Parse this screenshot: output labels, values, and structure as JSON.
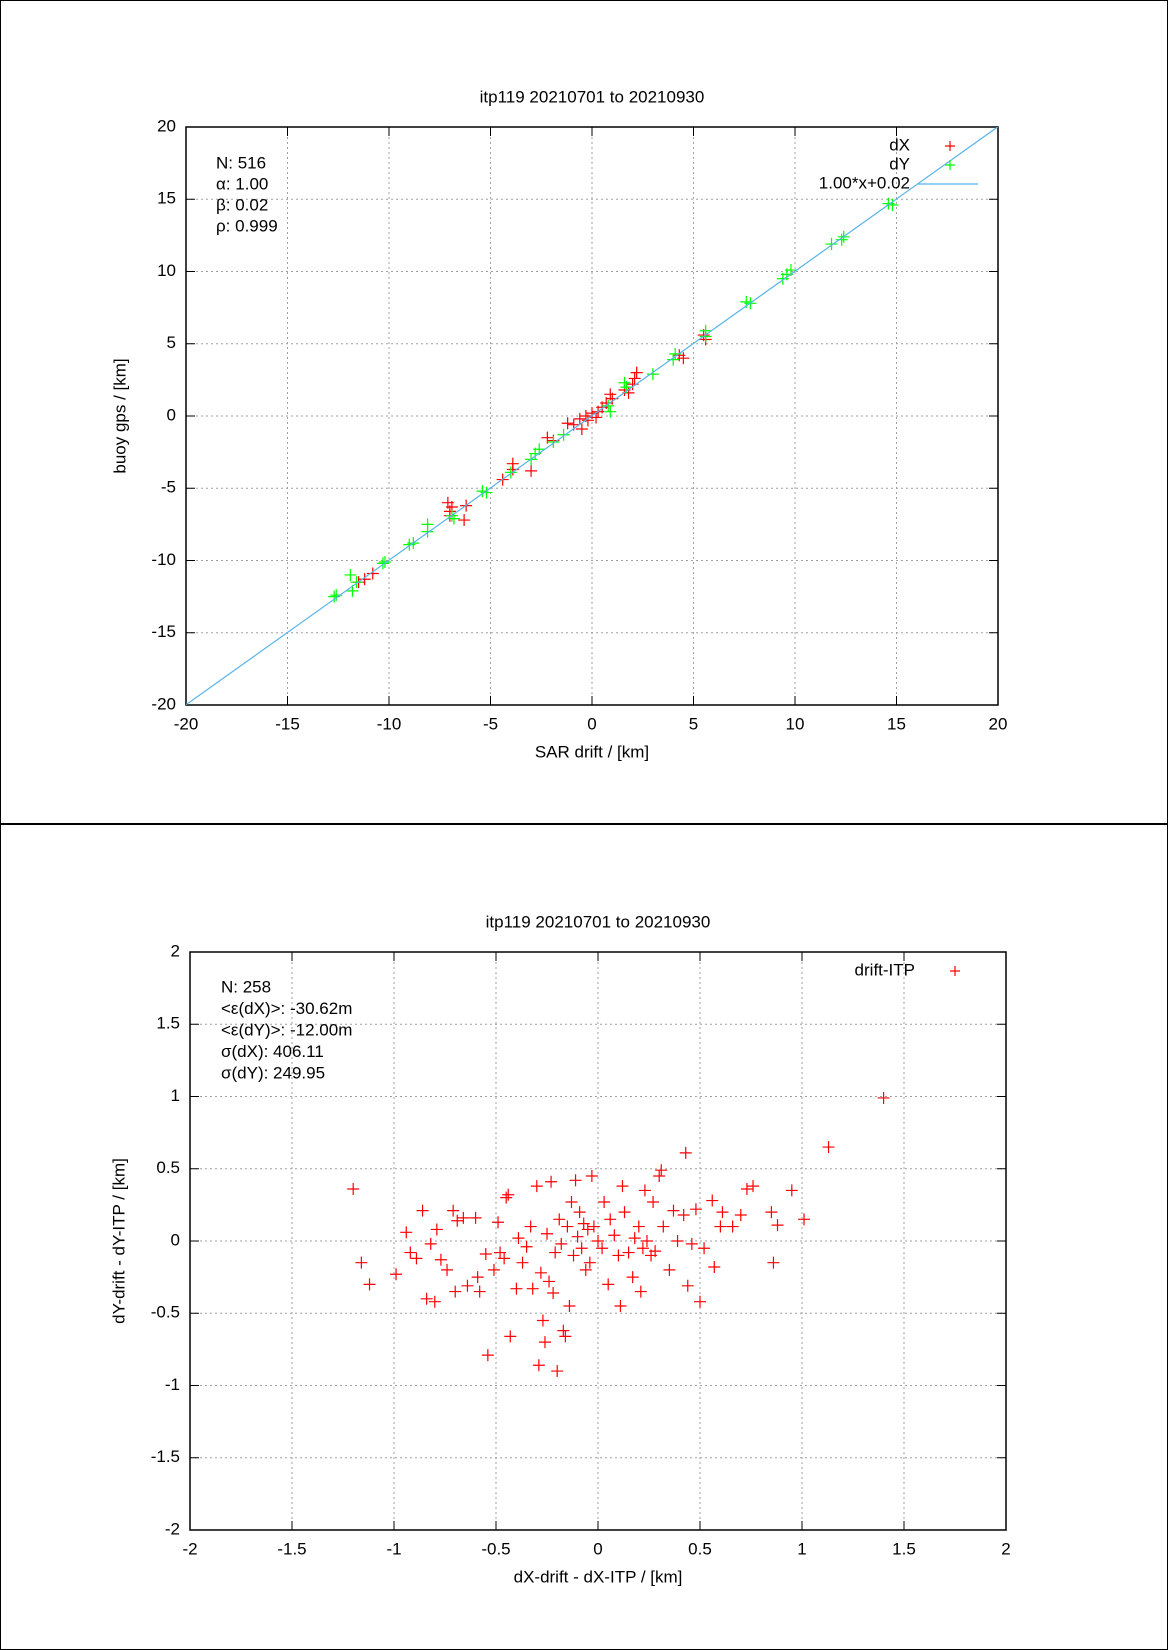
{
  "chart_data": [
    {
      "type": "scatter",
      "title": "itp119 20210701 to 20210930",
      "xlabel": "SAR drift / [km]",
      "ylabel": "buoy gps / [km]",
      "xlim": [
        -20,
        20
      ],
      "ylim": [
        -20,
        20
      ],
      "xticks": [
        -20,
        -15,
        -10,
        -5,
        0,
        5,
        10,
        15,
        20
      ],
      "yticks": [
        -20,
        -15,
        -10,
        -5,
        0,
        5,
        10,
        15,
        20
      ],
      "grid": true,
      "legend": "top-right",
      "annotations": [
        "N: 516",
        "α: 1.00",
        "β: 0.02",
        "ρ: 0.999"
      ],
      "series": [
        {
          "name": "dX",
          "color": "#ff0000",
          "style": "points",
          "x": [
            -11.5,
            -11.2,
            -10.8,
            -6.9,
            -7.0,
            -6.2,
            -6.3,
            -4.4,
            -3.9,
            -3.9,
            -3.0,
            -1.9,
            -1.2,
            -0.9,
            -0.6,
            -0.3,
            0.0,
            -0.2,
            0.5,
            0.9,
            1.0,
            1.8,
            2.1,
            2.2,
            4.3,
            4.5,
            5.6,
            5.5,
            0.2,
            -2.2,
            0.7,
            1.6,
            2.0,
            -0.5,
            0.3,
            -7.0,
            -7.1
          ],
          "y": [
            -11.5,
            -11.3,
            -10.9,
            -6.3,
            -6.6,
            -6.2,
            -7.2,
            -4.4,
            -3.3,
            -3.7,
            -3.8,
            -1.7,
            -0.5,
            -0.6,
            -0.2,
            0.0,
            0.2,
            -0.3,
            0.6,
            1.5,
            1.2,
            1.6,
            2.6,
            3.0,
            4.2,
            4.0,
            5.3,
            5.6,
            -0.1,
            -1.5,
            0.9,
            1.8,
            2.2,
            -0.9,
            0.3,
            -6.9,
            -6.0
          ]
        },
        {
          "name": "dY",
          "color": "#00ff00",
          "style": "points",
          "x": [
            -12.6,
            -12.7,
            -11.9,
            -11.8,
            -11.6,
            -10.2,
            -10.3,
            -9.0,
            -8.8,
            -8.1,
            -8.1,
            -6.9,
            -6.8,
            -5.4,
            -5.2,
            -4.0,
            -2.8,
            -3.0,
            -2.6,
            -1.9,
            -1.4,
            0.9,
            0.8,
            1.6,
            1.7,
            3.0,
            4.0,
            4.1,
            5.6,
            5.6,
            7.6,
            7.8,
            9.4,
            9.6,
            9.8,
            11.8,
            12.4,
            12.3,
            14.6,
            14.8
          ],
          "y": [
            -12.4,
            -12.5,
            -11.0,
            -12.1,
            -11.5,
            -10.1,
            -10.2,
            -8.9,
            -8.8,
            -7.5,
            -8.0,
            -6.9,
            -7.1,
            -5.2,
            -5.3,
            -3.9,
            -2.6,
            -3.0,
            -2.3,
            -1.8,
            -1.3,
            0.3,
            0.7,
            2.3,
            2.0,
            2.9,
            3.9,
            4.3,
            5.9,
            5.5,
            7.9,
            7.8,
            9.5,
            9.8,
            10.1,
            11.9,
            12.4,
            12.2,
            14.7,
            14.6
          ]
        },
        {
          "name": "1.00*x+0.02",
          "color": "#56b4e9",
          "style": "line",
          "x": [
            -20,
            20
          ],
          "y": [
            -19.98,
            20.02
          ]
        }
      ]
    },
    {
      "type": "scatter",
      "title": "itp119 20210701 to 20210930",
      "xlabel": "dX-drift - dX-ITP / [km]",
      "ylabel": "dY-drift - dY-ITP / [km]",
      "xlim": [
        -2,
        2
      ],
      "ylim": [
        -2,
        2
      ],
      "xticks": [
        -2,
        -1.5,
        -1,
        -0.5,
        0,
        0.5,
        1,
        1.5,
        2
      ],
      "yticks": [
        -2,
        -1.5,
        -1,
        -0.5,
        0,
        0.5,
        1,
        1.5,
        2
      ],
      "grid": true,
      "legend": "top-right",
      "annotations": [
        "N: 258",
        "<ε(dX)>:  -30.62m",
        "<ε(dY)>: -12.00m",
        "σ(dX):  406.11",
        "σ(dY):  249.95"
      ],
      "series": [
        {
          "name": "drift-ITP",
          "color": "#ff0000",
          "style": "points",
          "x": [
            -1.2,
            -1.16,
            -1.12,
            -0.99,
            -0.94,
            -0.92,
            -0.89,
            -0.86,
            -0.84,
            -0.82,
            -0.8,
            -0.79,
            -0.77,
            -0.74,
            -0.71,
            -0.7,
            -0.69,
            -0.66,
            -0.64,
            -0.6,
            -0.59,
            -0.58,
            -0.55,
            -0.54,
            -0.51,
            -0.49,
            -0.48,
            -0.46,
            -0.45,
            -0.44,
            -0.43,
            -0.4,
            -0.39,
            -0.37,
            -0.35,
            -0.33,
            -0.32,
            -0.3,
            -0.29,
            -0.28,
            -0.27,
            -0.26,
            -0.25,
            -0.24,
            -0.23,
            -0.22,
            -0.21,
            -0.2,
            -0.19,
            -0.18,
            -0.17,
            -0.16,
            -0.15,
            -0.14,
            -0.13,
            -0.12,
            -0.11,
            -0.1,
            -0.09,
            -0.08,
            -0.07,
            -0.06,
            -0.05,
            -0.04,
            -0.03,
            -0.02,
            0,
            0.02,
            0.03,
            0.05,
            0.06,
            0.08,
            0.1,
            0.11,
            0.12,
            0.13,
            0.15,
            0.17,
            0.18,
            0.2,
            0.21,
            0.22,
            0.23,
            0.24,
            0.26,
            0.27,
            0.28,
            0.3,
            0.31,
            0.32,
            0.35,
            0.37,
            0.39,
            0.42,
            0.43,
            0.44,
            0.46,
            0.48,
            0.5,
            0.52,
            0.56,
            0.57,
            0.6,
            0.61,
            0.66,
            0.7,
            0.73,
            0.76,
            0.85,
            0.86,
            0.88,
            0.95,
            1.01,
            1.13,
            1.4
          ],
          "y": [
            0.36,
            -0.15,
            -0.3,
            -0.23,
            0.06,
            -0.08,
            -0.12,
            0.21,
            -0.4,
            -0.02,
            -0.42,
            0.08,
            -0.13,
            -0.2,
            0.21,
            -0.35,
            0.14,
            0.16,
            -0.31,
            0.16,
            -0.25,
            -0.35,
            -0.09,
            -0.79,
            -0.2,
            0.13,
            -0.08,
            -0.12,
            0.3,
            0.32,
            -0.66,
            -0.33,
            0.02,
            -0.15,
            -0.04,
            0.1,
            -0.33,
            0.38,
            -0.86,
            -0.22,
            -0.55,
            -0.7,
            0.05,
            -0.28,
            0.41,
            -0.36,
            -0.08,
            -0.9,
            0.15,
            -0.02,
            -0.62,
            -0.66,
            0.1,
            -0.45,
            0.27,
            -0.1,
            0.42,
            0.03,
            0.2,
            -0.05,
            0.12,
            -0.2,
            0.08,
            -0.15,
            0.45,
            0.1,
            0.0,
            -0.05,
            0.27,
            -0.3,
            0.15,
            0.04,
            -0.1,
            -0.45,
            0.38,
            0.2,
            -0.08,
            -0.25,
            0.02,
            0.1,
            -0.35,
            -0.05,
            0.35,
            0.0,
            -0.1,
            0.27,
            -0.07,
            0.45,
            0.49,
            0.1,
            -0.2,
            0.21,
            0.0,
            0.18,
            0.61,
            -0.31,
            -0.02,
            0.22,
            -0.42,
            -0.05,
            0.28,
            -0.18,
            0.1,
            0.2,
            0.1,
            0.18,
            0.36,
            0.38,
            0.2,
            -0.15,
            0.11,
            0.35,
            0.15,
            0.65,
            0.99
          ]
        }
      ]
    }
  ]
}
